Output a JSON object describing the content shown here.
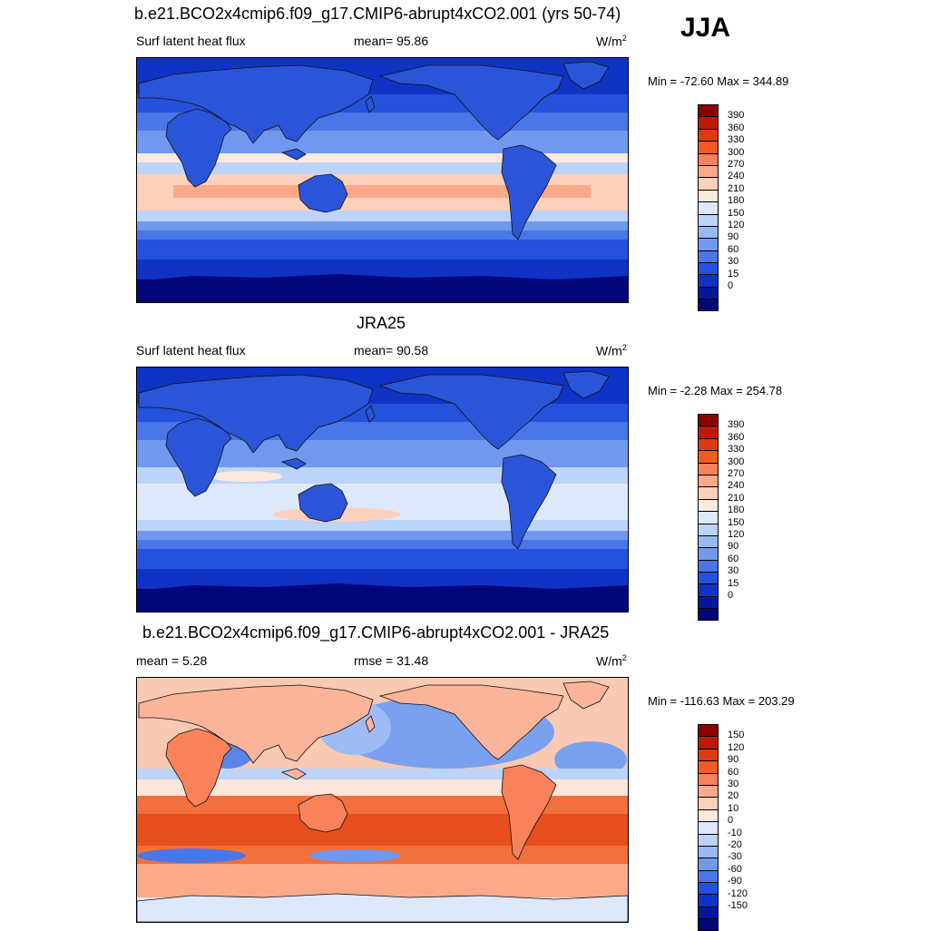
{
  "header": {
    "season": "JJA"
  },
  "panels": [
    {
      "title": "b.e21.BCO2x4cmip6.f09_g17.CMIP6-abrupt4xCO2.001 (yrs 50-74)",
      "left_label": "Surf latent heat flux",
      "center_label": "mean=  95.86",
      "units": "W/m",
      "units_sup": "2",
      "minmax": "Min = -72.60 Max = 344.89",
      "colorbar": {
        "colors": [
          "#8b0000",
          "#bb1a05",
          "#de3a10",
          "#f25c22",
          "#f9825a",
          "#fca98a",
          "#fdd0bb",
          "#fdeadf",
          "#dde9fb",
          "#bcd3fa",
          "#98b8f5",
          "#7098ef",
          "#4a76e8",
          "#2552dc",
          "#0f33c5",
          "#05179a",
          "#020678"
        ],
        "labels": [
          "390",
          "360",
          "330",
          "300",
          "270",
          "240",
          "210",
          "180",
          "150",
          "120",
          "90",
          "60",
          "30",
          "15",
          "0"
        ]
      },
      "map": {
        "style": "model"
      }
    },
    {
      "title": "JRA25",
      "left_label": "Surf latent heat flux",
      "center_label": "mean=  90.58",
      "units": "W/m",
      "units_sup": "2",
      "minmax": "Min =  -2.28 Max = 254.78",
      "colorbar": {
        "colors": [
          "#8b0000",
          "#bb1a05",
          "#de3a10",
          "#f25c22",
          "#f9825a",
          "#fca98a",
          "#fdd0bb",
          "#fdeadf",
          "#dde9fb",
          "#bcd3fa",
          "#98b8f5",
          "#7098ef",
          "#4a76e8",
          "#2552dc",
          "#0f33c5",
          "#05179a",
          "#020678"
        ],
        "labels": [
          "390",
          "360",
          "330",
          "300",
          "270",
          "240",
          "210",
          "180",
          "150",
          "120",
          "90",
          "60",
          "30",
          "15",
          "0"
        ]
      },
      "map": {
        "style": "obs"
      }
    },
    {
      "title": "b.e21.BCO2x4cmip6.f09_g17.CMIP6-abrupt4xCO2.001 - JRA25",
      "left_label": "mean =   5.28",
      "center_label": "rmse =  31.48",
      "units": "W/m",
      "units_sup": "2",
      "minmax": "Min = -116.63 Max = 203.29",
      "colorbar": {
        "colors": [
          "#8b0000",
          "#bb1a05",
          "#de3a10",
          "#f25c22",
          "#f9825a",
          "#fca98a",
          "#fdd0bb",
          "#fdeadf",
          "#dde9fb",
          "#bcd3fa",
          "#98b8f5",
          "#7098ef",
          "#4a76e8",
          "#2552dc",
          "#0f33c5",
          "#05179a",
          "#020678"
        ],
        "labels": [
          "150",
          "120",
          "90",
          "60",
          "30",
          "20",
          "10",
          "0",
          "-10",
          "-20",
          "-30",
          "-60",
          "-90",
          "-120",
          "-150"
        ]
      },
      "map": {
        "style": "diff"
      }
    }
  ]
}
